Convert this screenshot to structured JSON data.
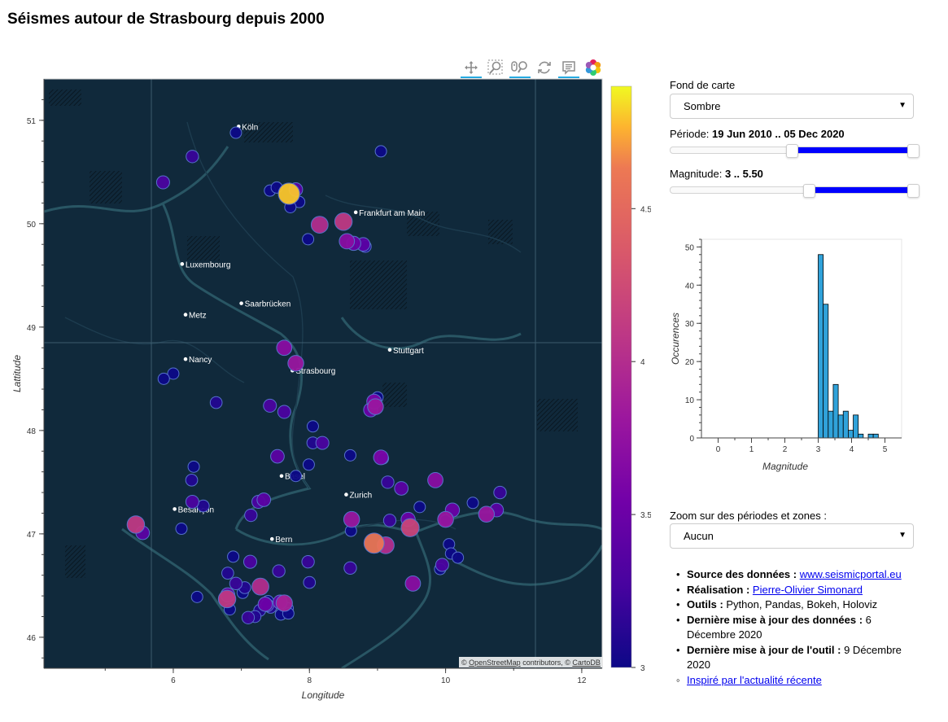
{
  "page": {
    "title": "Séismes autour de Strasbourg depuis 2000"
  },
  "toolbar": {
    "tools": [
      "pan-tool",
      "box-zoom-tool",
      "wheel-zoom-tool",
      "reset-tool",
      "hover-tool",
      "bokeh-logo"
    ]
  },
  "map": {
    "xlabel": "Longitude",
    "ylabel": "Lattitude",
    "xticks": [
      "6",
      "8",
      "10",
      "12"
    ],
    "yticks": [
      "46",
      "47",
      "48",
      "49",
      "50",
      "51"
    ],
    "xlim": [
      4.1,
      12.3
    ],
    "ylim": [
      45.7,
      51.4
    ],
    "attribution_prefix": "© ",
    "attribution_osm": "OpenStreetMap",
    "attribution_mid": " contributors, © ",
    "attribution_carto": "CartoDB",
    "colorbar": {
      "ticks": [
        "3",
        "3.5",
        "4",
        "4.5"
      ],
      "range": [
        3.0,
        4.9
      ]
    },
    "colors": {
      "background": "#0d2536",
      "land": "#13344a",
      "border": "#2e5e6c",
      "point_stroke": "#5572c9"
    },
    "cities": [
      {
        "name": "Köln",
        "lon": 6.96,
        "lat": 50.94
      },
      {
        "name": "Frankfurt am Main",
        "lon": 8.68,
        "lat": 50.11
      },
      {
        "name": "Luxembourg",
        "lon": 6.13,
        "lat": 49.61
      },
      {
        "name": "Saarbrücken",
        "lon": 7.0,
        "lat": 49.23
      },
      {
        "name": "Metz",
        "lon": 6.18,
        "lat": 49.12
      },
      {
        "name": "Stuttgart",
        "lon": 9.18,
        "lat": 48.78
      },
      {
        "name": "Nancy",
        "lon": 6.18,
        "lat": 48.69
      },
      {
        "name": "Strasbourg",
        "lon": 7.75,
        "lat": 48.58
      },
      {
        "name": "Basel",
        "lon": 7.59,
        "lat": 47.56
      },
      {
        "name": "Zurich",
        "lon": 8.54,
        "lat": 47.38
      },
      {
        "name": "Besançon",
        "lon": 6.02,
        "lat": 47.24
      },
      {
        "name": "Bern",
        "lon": 7.45,
        "lat": 46.95
      }
    ]
  },
  "chart_data": [
    {
      "type": "scatter",
      "xlabel": "Longitude",
      "ylabel": "Lattitude",
      "xlim": [
        4.1,
        12.3
      ],
      "ylim": [
        45.7,
        51.4
      ],
      "color_scale": "plasma",
      "points": [
        {
          "lon": 6.92,
          "lat": 50.88,
          "mag": 3.0
        },
        {
          "lon": 9.05,
          "lat": 50.7,
          "mag": 3.0
        },
        {
          "lon": 6.28,
          "lat": 50.65,
          "mag": 3.2
        },
        {
          "lon": 5.85,
          "lat": 50.4,
          "mag": 3.3
        },
        {
          "lon": 7.42,
          "lat": 50.32,
          "mag": 3.0
        },
        {
          "lon": 7.52,
          "lat": 50.35,
          "mag": 3.0
        },
        {
          "lon": 7.8,
          "lat": 50.33,
          "mag": 3.4
        },
        {
          "lon": 7.7,
          "lat": 50.29,
          "mag": 4.8
        },
        {
          "lon": 7.85,
          "lat": 50.21,
          "mag": 3.0
        },
        {
          "lon": 7.72,
          "lat": 50.16,
          "mag": 3.0
        },
        {
          "lon": 8.5,
          "lat": 50.02,
          "mag": 4.1
        },
        {
          "lon": 8.15,
          "lat": 49.99,
          "mag": 4.0
        },
        {
          "lon": 7.98,
          "lat": 49.85,
          "mag": 3.0
        },
        {
          "lon": 8.55,
          "lat": 49.83,
          "mag": 3.7
        },
        {
          "lon": 8.65,
          "lat": 49.81,
          "mag": 3.5
        },
        {
          "lon": 8.79,
          "lat": 49.8,
          "mag": 3.4
        },
        {
          "lon": 8.82,
          "lat": 49.78,
          "mag": 3.1
        },
        {
          "lon": 7.63,
          "lat": 48.8,
          "mag": 3.7
        },
        {
          "lon": 7.8,
          "lat": 48.65,
          "mag": 3.8
        },
        {
          "lon": 6.0,
          "lat": 48.55,
          "mag": 3.0
        },
        {
          "lon": 5.86,
          "lat": 48.5,
          "mag": 3.0
        },
        {
          "lon": 6.63,
          "lat": 48.27,
          "mag": 3.1
        },
        {
          "lon": 7.42,
          "lat": 48.24,
          "mag": 3.3
        },
        {
          "lon": 7.63,
          "lat": 48.18,
          "mag": 3.3
        },
        {
          "lon": 9.0,
          "lat": 48.32,
          "mag": 3.0
        },
        {
          "lon": 8.95,
          "lat": 48.28,
          "mag": 3.6
        },
        {
          "lon": 8.9,
          "lat": 48.2,
          "mag": 3.5
        },
        {
          "lon": 8.97,
          "lat": 48.23,
          "mag": 3.8
        },
        {
          "lon": 8.05,
          "lat": 48.04,
          "mag": 3.0
        },
        {
          "lon": 8.05,
          "lat": 47.88,
          "mag": 3.1
        },
        {
          "lon": 8.19,
          "lat": 47.88,
          "mag": 3.3
        },
        {
          "lon": 8.6,
          "lat": 47.76,
          "mag": 3.0
        },
        {
          "lon": 9.05,
          "lat": 47.74,
          "mag": 3.6
        },
        {
          "lon": 9.08,
          "lat": 47.73,
          "mag": 3.0
        },
        {
          "lon": 7.53,
          "lat": 47.75,
          "mag": 3.4
        },
        {
          "lon": 7.99,
          "lat": 47.67,
          "mag": 3.0
        },
        {
          "lon": 6.3,
          "lat": 47.65,
          "mag": 3.0
        },
        {
          "lon": 7.8,
          "lat": 47.56,
          "mag": 3.0
        },
        {
          "lon": 6.27,
          "lat": 47.52,
          "mag": 3.1
        },
        {
          "lon": 9.15,
          "lat": 47.5,
          "mag": 3.2
        },
        {
          "lon": 9.35,
          "lat": 47.44,
          "mag": 3.4
        },
        {
          "lon": 9.85,
          "lat": 47.52,
          "mag": 3.7
        },
        {
          "lon": 10.8,
          "lat": 47.4,
          "mag": 3.2
        },
        {
          "lon": 10.4,
          "lat": 47.3,
          "mag": 3.0
        },
        {
          "lon": 9.62,
          "lat": 47.26,
          "mag": 3.0
        },
        {
          "lon": 7.33,
          "lat": 47.33,
          "mag": 3.4
        },
        {
          "lon": 7.25,
          "lat": 47.31,
          "mag": 3.3
        },
        {
          "lon": 6.28,
          "lat": 47.31,
          "mag": 3.3
        },
        {
          "lon": 6.44,
          "lat": 47.27,
          "mag": 3.1
        },
        {
          "lon": 10.1,
          "lat": 47.23,
          "mag": 3.5
        },
        {
          "lon": 10.75,
          "lat": 47.23,
          "mag": 3.4
        },
        {
          "lon": 10.6,
          "lat": 47.19,
          "mag": 3.8
        },
        {
          "lon": 7.14,
          "lat": 47.18,
          "mag": 3.2
        },
        {
          "lon": 8.62,
          "lat": 47.14,
          "mag": 3.8
        },
        {
          "lon": 10.0,
          "lat": 47.14,
          "mag": 3.8
        },
        {
          "lon": 9.45,
          "lat": 47.14,
          "mag": 3.5
        },
        {
          "lon": 10.0,
          "lat": 47.13,
          "mag": 3.0
        },
        {
          "lon": 9.18,
          "lat": 47.13,
          "mag": 3.2
        },
        {
          "lon": 5.45,
          "lat": 47.09,
          "mag": 4.1
        },
        {
          "lon": 9.48,
          "lat": 47.06,
          "mag": 4.2
        },
        {
          "lon": 6.12,
          "lat": 47.05,
          "mag": 3.0
        },
        {
          "lon": 8.61,
          "lat": 47.03,
          "mag": 3.0
        },
        {
          "lon": 5.55,
          "lat": 47.01,
          "mag": 3.4
        },
        {
          "lon": 8.95,
          "lat": 46.91,
          "mag": 4.6
        },
        {
          "lon": 9.12,
          "lat": 46.89,
          "mag": 4.0
        },
        {
          "lon": 10.05,
          "lat": 46.9,
          "mag": 3.0
        },
        {
          "lon": 10.08,
          "lat": 46.81,
          "mag": 3.0
        },
        {
          "lon": 10.18,
          "lat": 46.77,
          "mag": 3.0
        },
        {
          "lon": 6.88,
          "lat": 46.78,
          "mag": 3.0
        },
        {
          "lon": 7.13,
          "lat": 46.73,
          "mag": 3.3
        },
        {
          "lon": 7.98,
          "lat": 46.73,
          "mag": 3.2
        },
        {
          "lon": 9.95,
          "lat": 46.7,
          "mag": 3.3
        },
        {
          "lon": 9.92,
          "lat": 46.66,
          "mag": 3.0
        },
        {
          "lon": 8.6,
          "lat": 46.67,
          "mag": 3.2
        },
        {
          "lon": 6.8,
          "lat": 46.62,
          "mag": 3.1
        },
        {
          "lon": 7.55,
          "lat": 46.64,
          "mag": 3.2
        },
        {
          "lon": 6.92,
          "lat": 46.52,
          "mag": 3.2
        },
        {
          "lon": 8.0,
          "lat": 46.53,
          "mag": 3.1
        },
        {
          "lon": 9.52,
          "lat": 46.52,
          "mag": 3.7
        },
        {
          "lon": 7.28,
          "lat": 46.49,
          "mag": 4.0
        },
        {
          "lon": 7.05,
          "lat": 46.48,
          "mag": 3.1
        },
        {
          "lon": 7.02,
          "lat": 46.43,
          "mag": 3.0
        },
        {
          "lon": 6.8,
          "lat": 46.41,
          "mag": 3.5
        },
        {
          "lon": 6.79,
          "lat": 46.37,
          "mag": 4.1
        },
        {
          "lon": 6.35,
          "lat": 46.39,
          "mag": 3.0
        },
        {
          "lon": 7.39,
          "lat": 46.35,
          "mag": 3.0
        },
        {
          "lon": 7.38,
          "lat": 46.31,
          "mag": 3.3
        },
        {
          "lon": 7.35,
          "lat": 46.32,
          "mag": 3.5
        },
        {
          "lon": 7.63,
          "lat": 46.33,
          "mag": 3.9
        },
        {
          "lon": 7.57,
          "lat": 46.34,
          "mag": 3.5
        },
        {
          "lon": 7.43,
          "lat": 46.29,
          "mag": 3.1
        },
        {
          "lon": 7.68,
          "lat": 46.28,
          "mag": 3.0
        },
        {
          "lon": 7.27,
          "lat": 46.26,
          "mag": 3.1
        },
        {
          "lon": 6.83,
          "lat": 46.27,
          "mag": 3.0
        },
        {
          "lon": 7.58,
          "lat": 46.22,
          "mag": 3.0
        },
        {
          "lon": 7.69,
          "lat": 46.23,
          "mag": 3.0
        },
        {
          "lon": 7.1,
          "lat": 46.19,
          "mag": 3.2
        },
        {
          "lon": 7.2,
          "lat": 46.2,
          "mag": 3.1
        }
      ]
    },
    {
      "type": "bar",
      "xlabel": "Magnitude",
      "ylabel": "Occurences",
      "xlim": [
        -0.5,
        5.5
      ],
      "ylim": [
        0,
        52
      ],
      "xticks": [
        "0",
        "1",
        "2",
        "3",
        "4",
        "5"
      ],
      "yticks": [
        "0",
        "10",
        "20",
        "30",
        "40",
        "50"
      ],
      "bin_width": 0.15,
      "bins": [
        {
          "start": 3.0,
          "count": 48
        },
        {
          "start": 3.15,
          "count": 35
        },
        {
          "start": 3.3,
          "count": 7
        },
        {
          "start": 3.45,
          "count": 14
        },
        {
          "start": 3.6,
          "count": 6
        },
        {
          "start": 3.75,
          "count": 7
        },
        {
          "start": 3.9,
          "count": 2
        },
        {
          "start": 4.05,
          "count": 6
        },
        {
          "start": 4.2,
          "count": 1
        },
        {
          "start": 4.35,
          "count": 0
        },
        {
          "start": 4.5,
          "count": 1
        },
        {
          "start": 4.65,
          "count": 1
        }
      ],
      "colors": {
        "bar": "#30a2da",
        "bar_stroke": "#000000"
      }
    }
  ],
  "controls": {
    "basemap_label": "Fond de carte",
    "basemap_value": "Sombre",
    "period_label": "Période: ",
    "period_value": "19 Jun 2010 .. 05 Dec 2020",
    "period_range": [
      0.5,
      1.0
    ],
    "magnitude_label": "Magnitude: ",
    "magnitude_value": "3 .. 5.50",
    "magnitude_range": [
      0.57,
      1.0
    ],
    "zoom_label": "Zoom sur des périodes et zones :",
    "zoom_value": "Aucun",
    "slider_color": "#0000ff"
  },
  "info": {
    "source_label": "Source des données : ",
    "source_link": "www.seismicportal.eu",
    "author_label": "Réalisation : ",
    "author_link": "Pierre-Olivier Simonard",
    "tools_label": "Outils : ",
    "tools_value": "Python, Pandas, Bokeh, Holoviz",
    "data_update_label": "Dernière mise à jour des données : ",
    "data_update_value": "6 Décembre 2020",
    "tool_update_label": "Dernière mise à jour de l'outil : ",
    "tool_update_value": "9 Décembre 2020",
    "inspired_link": "Inspiré par l'actualité récente"
  }
}
